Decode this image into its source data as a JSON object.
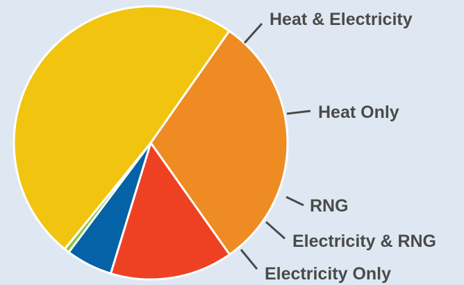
{
  "chart_data": {
    "type": "pie",
    "title": "",
    "unit": "%",
    "slices": [
      {
        "label": "Heat & Electricity",
        "value": 30.5,
        "color": "#ee8b22"
      },
      {
        "label": "Heat Only",
        "value": 14.5,
        "color": "#ee4123"
      },
      {
        "label": "RNG",
        "value": 5.5,
        "color": "#0562a6"
      },
      {
        "label": "Electricity & RNG",
        "value": 0.6,
        "color": "#8cc63f"
      },
      {
        "label": "Electricity Only",
        "value": 48.9,
        "color": "#f1c40f"
      }
    ],
    "start_angle_deg": -55,
    "direction": "clockwise",
    "labels": "outside-with-leader-lines",
    "legend": "none"
  }
}
